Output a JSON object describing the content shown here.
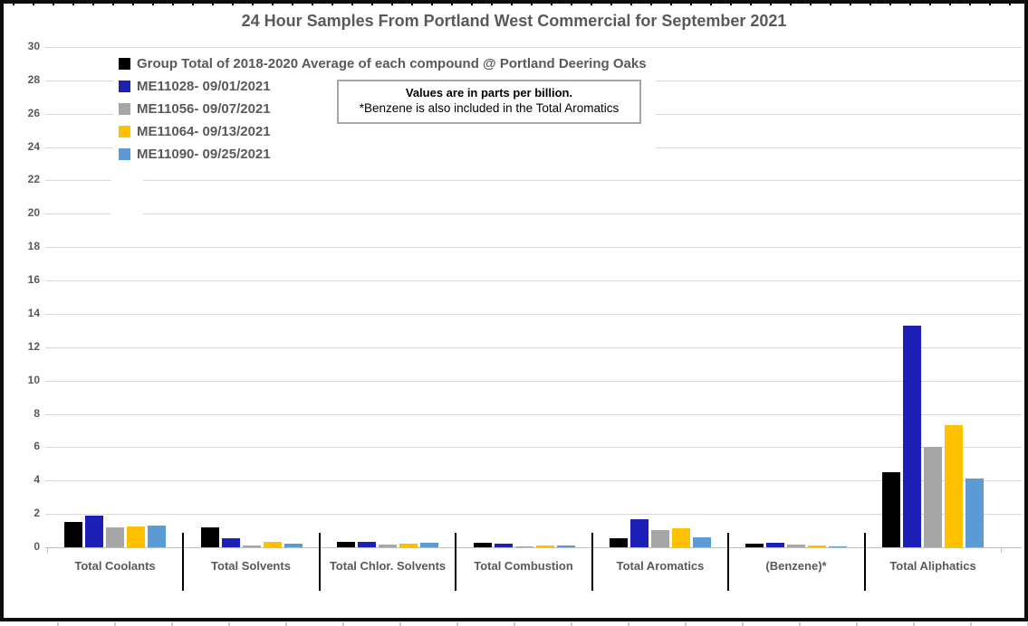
{
  "title": "24 Hour Samples From Portland West Commercial for September 2021",
  "note": {
    "line1": "Values are in parts per billion.",
    "line2": "*Benzene is also included in the Total Aromatics"
  },
  "colors": {
    "text": "#595959",
    "gridline": "#d9d9d9",
    "series_black": "#000000",
    "series_dark_blue": "#1c20b6",
    "series_gray": "#a6a6a6",
    "series_yellow": "#ffc000",
    "series_light_blue": "#5b9bd5"
  },
  "chart_data": {
    "type": "bar",
    "title": "24 Hour Samples From Portland West Commercial for September 2021",
    "categories": [
      "Total Coolants",
      "Total Solvents",
      "Total Chlor. Solvents",
      "Total Combustion",
      "Total Aromatics",
      "(Benzene)*",
      "Total Aliphatics"
    ],
    "series": [
      {
        "name": "Group Total of 2018-2020 Average of each compound @ Portland Deering Oaks",
        "color": "#000000",
        "values": [
          1.5,
          1.2,
          0.35,
          0.25,
          0.55,
          0.2,
          4.5
        ]
      },
      {
        "name": "ME11028- 09/01/2021",
        "color": "#1c20b6",
        "values": [
          1.9,
          0.55,
          0.3,
          0.2,
          1.7,
          0.25,
          13.3
        ]
      },
      {
        "name": "ME11056- 09/07/2021",
        "color": "#a6a6a6",
        "values": [
          1.2,
          0.12,
          0.15,
          0.08,
          1.05,
          0.18,
          6.0
        ]
      },
      {
        "name": "ME11064- 09/13/2021",
        "color": "#ffc000",
        "values": [
          1.25,
          0.3,
          0.2,
          0.12,
          1.15,
          0.1,
          7.35
        ]
      },
      {
        "name": "ME11090- 09/25/2021",
        "color": "#5b9bd5",
        "values": [
          1.3,
          0.2,
          0.28,
          0.13,
          0.6,
          0.05,
          4.1
        ]
      }
    ],
    "xlabel": "",
    "ylabel": "",
    "ylim": [
      0,
      30
    ],
    "ytick_step": 2,
    "grid": true,
    "legend_position": "top-left"
  }
}
